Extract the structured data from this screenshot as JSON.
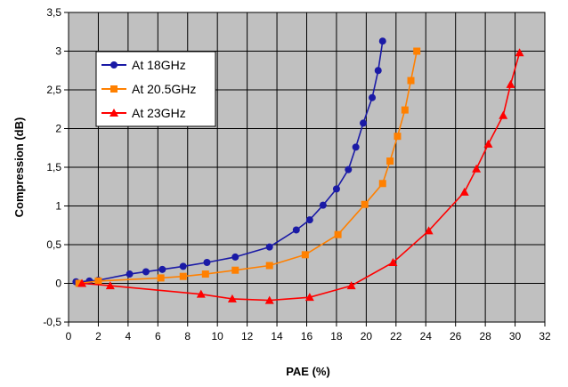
{
  "chart_data": {
    "type": "scatter",
    "title": "",
    "xlabel": "PAE (%)",
    "ylabel": "Compression (dB)",
    "xlim": [
      0,
      32
    ],
    "ylim": [
      -0.5,
      3.5
    ],
    "x_ticks": [
      "0",
      "2",
      "4",
      "6",
      "8",
      "10",
      "12",
      "14",
      "16",
      "18",
      "20",
      "22",
      "24",
      "26",
      "28",
      "30",
      "32"
    ],
    "y_ticks": [
      "-0,5",
      "0",
      "0,5",
      "1",
      "1,5",
      "2",
      "2,5",
      "3",
      "3,5"
    ],
    "grid": true,
    "legend_position": "top-left",
    "plot_background": "#c0c0c0",
    "series": [
      {
        "name": "At 18GHz",
        "color": "#1a1aa6",
        "marker": "circle",
        "points": [
          [
            0.5,
            0.02
          ],
          [
            1.4,
            0.03
          ],
          [
            2.0,
            0.04
          ],
          [
            4.1,
            0.12
          ],
          [
            5.2,
            0.15
          ],
          [
            6.3,
            0.18
          ],
          [
            7.7,
            0.22
          ],
          [
            9.3,
            0.27
          ],
          [
            11.2,
            0.34
          ],
          [
            13.5,
            0.47
          ],
          [
            15.3,
            0.69
          ],
          [
            16.2,
            0.82
          ],
          [
            17.1,
            1.01
          ],
          [
            18.0,
            1.22
          ],
          [
            18.8,
            1.47
          ],
          [
            19.3,
            1.76
          ],
          [
            19.8,
            2.07
          ],
          [
            20.4,
            2.4
          ],
          [
            20.8,
            2.75
          ],
          [
            21.1,
            3.13
          ]
        ]
      },
      {
        "name": "At 20.5GHz",
        "color": "#ff8000",
        "marker": "square",
        "points": [
          [
            0.7,
            0.0
          ],
          [
            2.0,
            0.03
          ],
          [
            6.2,
            0.07
          ],
          [
            7.7,
            0.09
          ],
          [
            9.2,
            0.12
          ],
          [
            11.2,
            0.17
          ],
          [
            13.5,
            0.23
          ],
          [
            15.9,
            0.37
          ],
          [
            18.1,
            0.63
          ],
          [
            19.9,
            1.02
          ],
          [
            21.1,
            1.29
          ],
          [
            21.6,
            1.58
          ],
          [
            22.1,
            1.9
          ],
          [
            22.6,
            2.24
          ],
          [
            23.0,
            2.62
          ],
          [
            23.4,
            3.0
          ]
        ]
      },
      {
        "name": "At 23GHz",
        "color": "#ff0000",
        "marker": "triangle",
        "points": [
          [
            0.9,
            0.0
          ],
          [
            2.8,
            -0.03
          ],
          [
            8.9,
            -0.14
          ],
          [
            11.0,
            -0.2
          ],
          [
            13.5,
            -0.22
          ],
          [
            16.2,
            -0.18
          ],
          [
            19.0,
            -0.03
          ],
          [
            21.8,
            0.27
          ],
          [
            24.2,
            0.68
          ],
          [
            26.6,
            1.18
          ],
          [
            27.4,
            1.48
          ],
          [
            28.2,
            1.8
          ],
          [
            29.2,
            2.17
          ],
          [
            29.7,
            2.57
          ],
          [
            30.3,
            2.98
          ]
        ]
      }
    ]
  }
}
